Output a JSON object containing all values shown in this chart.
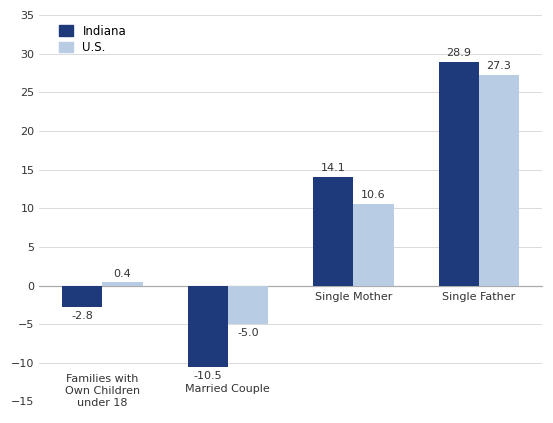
{
  "categories": [
    "Families with\nOwn Children\nunder 18",
    "Married Couple",
    "Single Mother",
    "Single Father"
  ],
  "indiana_values": [
    -2.8,
    -10.5,
    14.1,
    28.9
  ],
  "us_values": [
    0.4,
    -5.0,
    10.6,
    27.3
  ],
  "indiana_color": "#1f3a7a",
  "us_color": "#b8cce4",
  "ylim": [
    -15,
    35
  ],
  "yticks": [
    -15,
    -10,
    -5,
    0,
    5,
    10,
    15,
    20,
    25,
    30,
    35
  ],
  "legend_indiana": "Indiana",
  "legend_us": "U.S.",
  "bar_width": 0.32,
  "figure_width": 5.53,
  "figure_height": 4.23,
  "dpi": 100,
  "label_offsets_indiana": [
    -0.5,
    -0.5,
    0.5,
    0.5
  ],
  "label_offsets_us": [
    0.5,
    -0.5,
    0.5,
    0.5
  ],
  "label_va_indiana": [
    "top",
    "top",
    "bottom",
    "bottom"
  ],
  "label_va_us": [
    "bottom",
    "top",
    "bottom",
    "bottom"
  ],
  "xlabel_y_positive": -0.8,
  "xlabel_y_negative_1": -12.5,
  "xlabel_y_negative_2": -12.5
}
